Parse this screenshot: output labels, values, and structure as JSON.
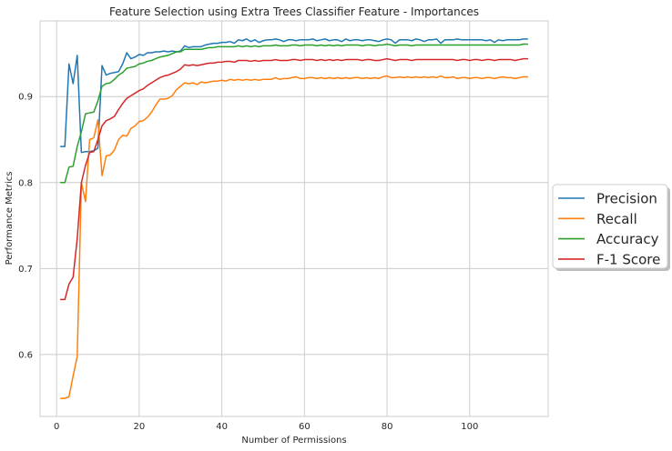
{
  "chart_data": {
    "type": "line",
    "title": "Feature Selection using Extra Trees Classifier Feature - Importances",
    "xlabel": "Number of Permissions",
    "ylabel": "Performance Metrics",
    "xlim": [
      -4,
      119
    ],
    "ylim": [
      0.528,
      0.988
    ],
    "xticks": [
      0,
      20,
      40,
      60,
      80,
      100
    ],
    "yticks": [
      0.6,
      0.7,
      0.8,
      0.9
    ],
    "ytick_labels": [
      "0.6",
      "0.7",
      "0.8",
      "0.9"
    ],
    "grid": true,
    "legend_position": "right, outside plot",
    "x": [
      1,
      2,
      3,
      4,
      5,
      6,
      7,
      8,
      9,
      10,
      11,
      12,
      13,
      14,
      15,
      16,
      17,
      18,
      19,
      20,
      21,
      22,
      23,
      24,
      25,
      26,
      27,
      28,
      29,
      30,
      31,
      32,
      33,
      34,
      35,
      36,
      37,
      38,
      39,
      40,
      41,
      42,
      43,
      44,
      45,
      46,
      47,
      48,
      49,
      50,
      51,
      52,
      53,
      54,
      55,
      56,
      57,
      58,
      59,
      60,
      61,
      62,
      63,
      64,
      65,
      66,
      67,
      68,
      69,
      70,
      71,
      72,
      73,
      74,
      75,
      76,
      77,
      78,
      79,
      80,
      81,
      82,
      83,
      84,
      85,
      86,
      87,
      88,
      89,
      90,
      91,
      92,
      93,
      94,
      95,
      96,
      97,
      98,
      99,
      100,
      101,
      102,
      103,
      104,
      105,
      106,
      107,
      108,
      109,
      110,
      111,
      112,
      113,
      114
    ],
    "series": [
      {
        "name": "Precision",
        "color": "#1f77b4",
        "values": [
          0.842,
          0.842,
          0.938,
          0.915,
          0.948,
          0.835,
          0.836,
          0.836,
          0.837,
          0.84,
          0.936,
          0.925,
          0.927,
          0.928,
          0.929,
          0.938,
          0.951,
          0.944,
          0.946,
          0.949,
          0.948,
          0.951,
          0.951,
          0.952,
          0.952,
          0.953,
          0.952,
          0.953,
          0.952,
          0.953,
          0.959,
          0.957,
          0.958,
          0.958,
          0.958,
          0.96,
          0.961,
          0.962,
          0.962,
          0.963,
          0.963,
          0.964,
          0.962,
          0.966,
          0.965,
          0.967,
          0.964,
          0.966,
          0.963,
          0.965,
          0.966,
          0.966,
          0.967,
          0.966,
          0.964,
          0.966,
          0.966,
          0.965,
          0.966,
          0.966,
          0.966,
          0.967,
          0.965,
          0.966,
          0.967,
          0.965,
          0.966,
          0.966,
          0.964,
          0.967,
          0.965,
          0.966,
          0.966,
          0.965,
          0.966,
          0.966,
          0.965,
          0.964,
          0.966,
          0.967,
          0.966,
          0.962,
          0.966,
          0.966,
          0.966,
          0.965,
          0.967,
          0.966,
          0.964,
          0.966,
          0.966,
          0.967,
          0.962,
          0.966,
          0.966,
          0.966,
          0.967,
          0.966,
          0.966,
          0.966,
          0.966,
          0.966,
          0.966,
          0.965,
          0.966,
          0.963,
          0.966,
          0.965,
          0.966,
          0.966,
          0.966,
          0.966,
          0.967,
          0.967
        ]
      },
      {
        "name": "Recall",
        "color": "#ff7f0e",
        "values": [
          0.549,
          0.549,
          0.551,
          0.575,
          0.598,
          0.8,
          0.778,
          0.85,
          0.852,
          0.873,
          0.808,
          0.831,
          0.832,
          0.838,
          0.85,
          0.855,
          0.854,
          0.863,
          0.866,
          0.871,
          0.872,
          0.876,
          0.882,
          0.89,
          0.897,
          0.897,
          0.898,
          0.901,
          0.908,
          0.912,
          0.916,
          0.915,
          0.916,
          0.914,
          0.917,
          0.916,
          0.917,
          0.918,
          0.918,
          0.919,
          0.918,
          0.92,
          0.919,
          0.92,
          0.919,
          0.92,
          0.919,
          0.92,
          0.919,
          0.92,
          0.92,
          0.92,
          0.922,
          0.92,
          0.921,
          0.921,
          0.922,
          0.923,
          0.921,
          0.921,
          0.922,
          0.922,
          0.921,
          0.922,
          0.921,
          0.922,
          0.921,
          0.922,
          0.921,
          0.922,
          0.921,
          0.922,
          0.922,
          0.921,
          0.922,
          0.921,
          0.922,
          0.921,
          0.923,
          0.924,
          0.922,
          0.922,
          0.923,
          0.922,
          0.923,
          0.922,
          0.923,
          0.922,
          0.923,
          0.922,
          0.923,
          0.922,
          0.924,
          0.922,
          0.922,
          0.923,
          0.921,
          0.922,
          0.922,
          0.921,
          0.922,
          0.922,
          0.921,
          0.922,
          0.922,
          0.921,
          0.922,
          0.923,
          0.922,
          0.922,
          0.921,
          0.922,
          0.923,
          0.923
        ]
      },
      {
        "name": "Accuracy",
        "color": "#2ca02c",
        "values": [
          0.8,
          0.8,
          0.818,
          0.819,
          0.842,
          0.859,
          0.88,
          0.881,
          0.882,
          0.895,
          0.912,
          0.915,
          0.916,
          0.92,
          0.925,
          0.928,
          0.933,
          0.934,
          0.935,
          0.938,
          0.939,
          0.941,
          0.942,
          0.944,
          0.946,
          0.947,
          0.948,
          0.95,
          0.952,
          0.952,
          0.955,
          0.955,
          0.955,
          0.955,
          0.955,
          0.956,
          0.957,
          0.957,
          0.958,
          0.958,
          0.958,
          0.958,
          0.958,
          0.959,
          0.958,
          0.959,
          0.958,
          0.959,
          0.958,
          0.959,
          0.959,
          0.959,
          0.96,
          0.959,
          0.959,
          0.959,
          0.96,
          0.96,
          0.959,
          0.96,
          0.96,
          0.96,
          0.959,
          0.96,
          0.959,
          0.96,
          0.959,
          0.96,
          0.959,
          0.96,
          0.96,
          0.96,
          0.96,
          0.959,
          0.96,
          0.96,
          0.959,
          0.96,
          0.96,
          0.961,
          0.96,
          0.959,
          0.96,
          0.96,
          0.96,
          0.959,
          0.96,
          0.96,
          0.96,
          0.96,
          0.96,
          0.96,
          0.96,
          0.96,
          0.96,
          0.96,
          0.96,
          0.96,
          0.96,
          0.96,
          0.96,
          0.96,
          0.96,
          0.96,
          0.96,
          0.96,
          0.96,
          0.96,
          0.96,
          0.96,
          0.96,
          0.96,
          0.961,
          0.961
        ]
      },
      {
        "name": "F-1 Score",
        "color": "#d62728",
        "values": [
          0.664,
          0.664,
          0.682,
          0.69,
          0.735,
          0.8,
          0.82,
          0.835,
          0.836,
          0.85,
          0.866,
          0.872,
          0.874,
          0.877,
          0.885,
          0.892,
          0.898,
          0.901,
          0.904,
          0.907,
          0.909,
          0.913,
          0.916,
          0.919,
          0.922,
          0.924,
          0.925,
          0.927,
          0.929,
          0.932,
          0.937,
          0.936,
          0.937,
          0.936,
          0.937,
          0.938,
          0.939,
          0.939,
          0.94,
          0.94,
          0.941,
          0.941,
          0.94,
          0.942,
          0.942,
          0.942,
          0.941,
          0.942,
          0.941,
          0.942,
          0.942,
          0.942,
          0.943,
          0.942,
          0.942,
          0.942,
          0.943,
          0.943,
          0.942,
          0.943,
          0.943,
          0.943,
          0.942,
          0.943,
          0.942,
          0.943,
          0.942,
          0.943,
          0.942,
          0.943,
          0.943,
          0.943,
          0.943,
          0.942,
          0.943,
          0.943,
          0.942,
          0.942,
          0.943,
          0.944,
          0.943,
          0.942,
          0.943,
          0.943,
          0.943,
          0.942,
          0.943,
          0.943,
          0.943,
          0.943,
          0.943,
          0.943,
          0.943,
          0.943,
          0.943,
          0.943,
          0.942,
          0.943,
          0.943,
          0.942,
          0.943,
          0.943,
          0.942,
          0.943,
          0.943,
          0.942,
          0.943,
          0.943,
          0.943,
          0.943,
          0.942,
          0.943,
          0.944,
          0.944
        ]
      }
    ]
  }
}
